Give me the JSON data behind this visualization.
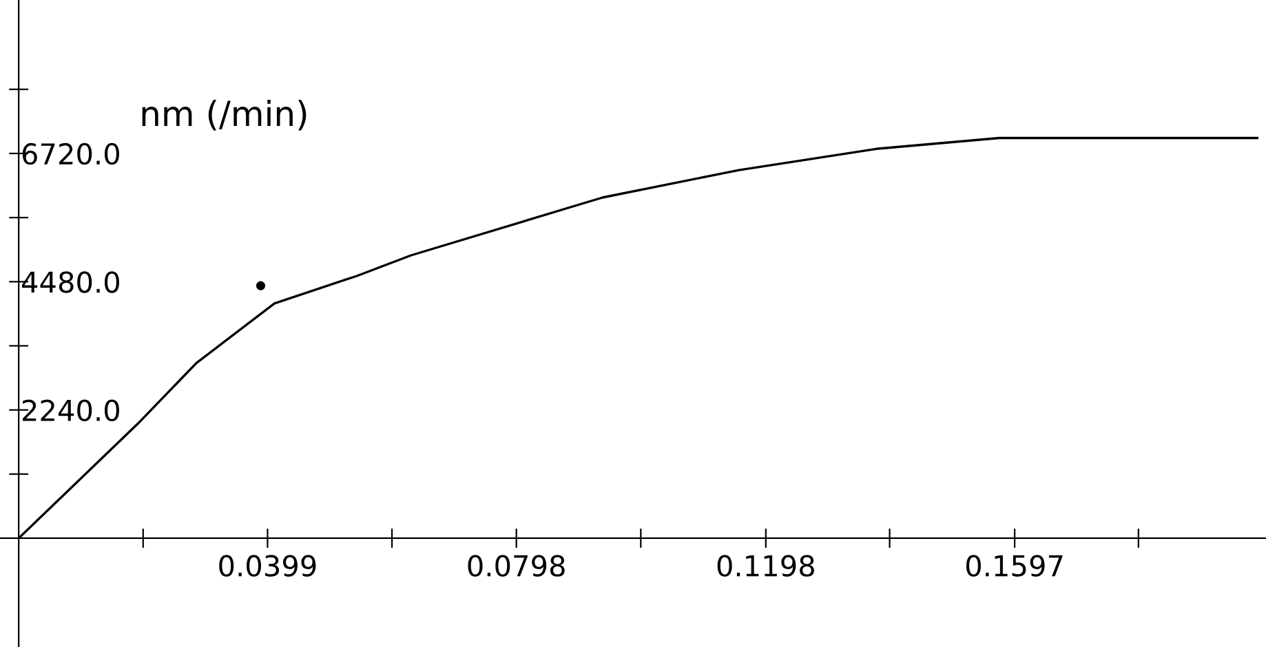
{
  "chart_data": {
    "type": "line",
    "ylabel": "nm (/min)",
    "x": [
      0,
      0.0191,
      0.0285,
      0.041,
      0.0542,
      0.0629,
      0.0936,
      0.1155,
      0.1375,
      0.1572,
      0.1986
    ],
    "series": [
      {
        "color": "#000000",
        "values": [
          0,
          2000,
          3060,
          4100,
          4580,
          4940,
          5950,
          6430,
          6800,
          6990,
          6990
        ]
      },
      {
        "type": "scatter",
        "color": "#000000",
        "x": [
          0.0388
        ],
        "values": [
          4410
        ]
      }
    ],
    "xlim": [
      -0.003,
      0.2
    ],
    "ylim": [
      -1900,
      9400
    ],
    "xticks": [
      {
        "value": 0.01995,
        "label": null
      },
      0.0399,
      {
        "value": 0.05985,
        "label": null
      },
      0.0798,
      {
        "value": 0.09975,
        "label": null
      },
      0.1198,
      {
        "value": 0.13965,
        "label": null
      },
      0.1597,
      {
        "value": 0.17955,
        "label": null
      }
    ],
    "yticks": [
      {
        "value": 1120,
        "label": null
      },
      {
        "value": 2240,
        "label": "2240.0"
      },
      {
        "value": 3360,
        "label": null
      },
      {
        "value": 4480,
        "label": "4480.0"
      },
      {
        "value": 5600,
        "label": null
      },
      {
        "value": 6720,
        "label": "6720.0"
      },
      {
        "value": 7840,
        "label": null
      }
    ],
    "grid": false,
    "legend": false,
    "line_style": "solid"
  }
}
